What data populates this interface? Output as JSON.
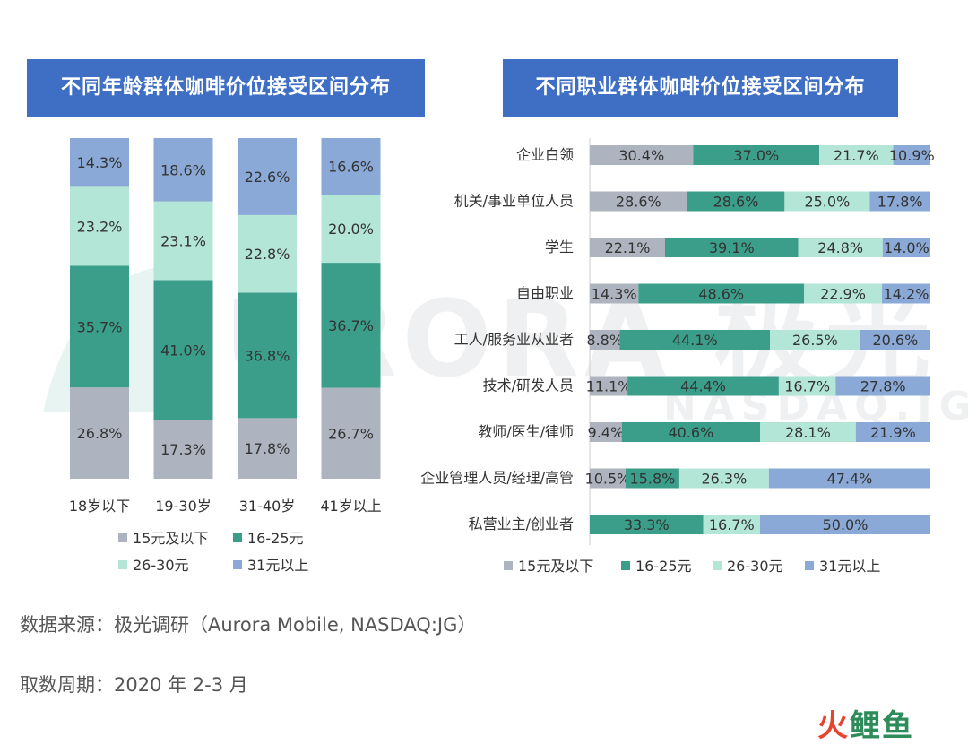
{
  "titles": {
    "left": "不同年龄群体咖啡价位接受区间分布",
    "right": "不同职业群体咖啡价位接受区间分布"
  },
  "watermark": {
    "main": "URORA 极光",
    "sub": "NASDAQ.JG"
  },
  "colors": {
    "15元及以下": "#aeb4bf",
    "16-25元": "#3a9e8a",
    "26-30元": "#b3e6d7",
    "31元以上": "#8aa9d6",
    "title_bg": "#3f6fc4"
  },
  "chart_data": [
    {
      "type": "bar",
      "stacked": true,
      "orientation": "vertical",
      "title": "不同年龄群体咖啡价位接受区间分布",
      "categories": [
        "18岁以下",
        "19-30岁",
        "31-40岁",
        "41岁以上"
      ],
      "series": [
        {
          "name": "15元及以下",
          "values": [
            26.8,
            17.3,
            17.8,
            26.7
          ],
          "labels": [
            "26.8%",
            "17.3%",
            "17.8%",
            "26.7%"
          ]
        },
        {
          "name": "16-25元",
          "values": [
            35.7,
            41.0,
            36.8,
            36.7
          ],
          "labels": [
            "35.7%",
            "41.0%",
            "36.8%",
            "36.7%"
          ]
        },
        {
          "name": "26-30元",
          "values": [
            23.2,
            23.1,
            22.8,
            20.0
          ],
          "labels": [
            "23.2%",
            "23.1%",
            "22.8%",
            "20.0%"
          ]
        },
        {
          "name": "31元以上",
          "values": [
            14.3,
            18.6,
            22.6,
            16.6
          ],
          "labels": [
            "14.3%",
            "18.6%",
            "22.6%",
            "16.6%"
          ]
        }
      ],
      "legend": [
        "15元及以下",
        "16-25元",
        "26-30元",
        "31元以上"
      ],
      "legend_position": "bottom"
    },
    {
      "type": "bar",
      "stacked": true,
      "orientation": "horizontal",
      "title": "不同职业群体咖啡价位接受区间分布",
      "categories": [
        "企业白领",
        "机关/事业单位人员",
        "学生",
        "自由职业",
        "工人/服务业从业者",
        "技术/研发人员",
        "教师/医生/律师",
        "企业管理人员/经理/高管",
        "私营业主/创业者"
      ],
      "series": [
        {
          "name": "15元及以下",
          "values": [
            30.4,
            28.6,
            22.1,
            14.3,
            8.8,
            11.1,
            9.4,
            10.5,
            0
          ],
          "labels": [
            "30.4%",
            "28.6%",
            "22.1%",
            "14.3%",
            "8.8%",
            "11.1%",
            "9.4%",
            "10.5%",
            ""
          ]
        },
        {
          "name": "16-25元",
          "values": [
            37.0,
            28.6,
            39.1,
            48.6,
            44.1,
            44.4,
            40.6,
            15.8,
            33.3
          ],
          "labels": [
            "37.0%",
            "28.6%",
            "39.1%",
            "48.6%",
            "44.1%",
            "44.4%",
            "40.6%",
            "15.8%",
            "33.3%"
          ]
        },
        {
          "name": "26-30元",
          "values": [
            21.7,
            25.0,
            24.8,
            22.9,
            26.5,
            16.7,
            28.1,
            26.3,
            16.7
          ],
          "labels": [
            "21.7%",
            "25.0%",
            "24.8%",
            "22.9%",
            "26.5%",
            "16.7%",
            "28.1%",
            "26.3%",
            "16.7%"
          ]
        },
        {
          "name": "31元以上",
          "values": [
            10.9,
            17.8,
            14.0,
            14.2,
            20.6,
            27.8,
            21.9,
            47.4,
            50.0
          ],
          "labels": [
            "10.9%",
            "17.8%",
            "14.0%",
            "14.2%",
            "20.6%",
            "27.8%",
            "21.9%",
            "47.4%",
            "50.0%"
          ]
        }
      ],
      "legend": [
        "15元及以下",
        "16-25元",
        "26-30元",
        "31元以上"
      ],
      "legend_position": "bottom"
    }
  ],
  "footer": {
    "source": "数据来源：极光调研（Aurora Mobile, NASDAQ:JG）",
    "period": "取数周期：2020 年 2-3 月",
    "brand_a": "火",
    "brand_b": "鲤鱼"
  }
}
